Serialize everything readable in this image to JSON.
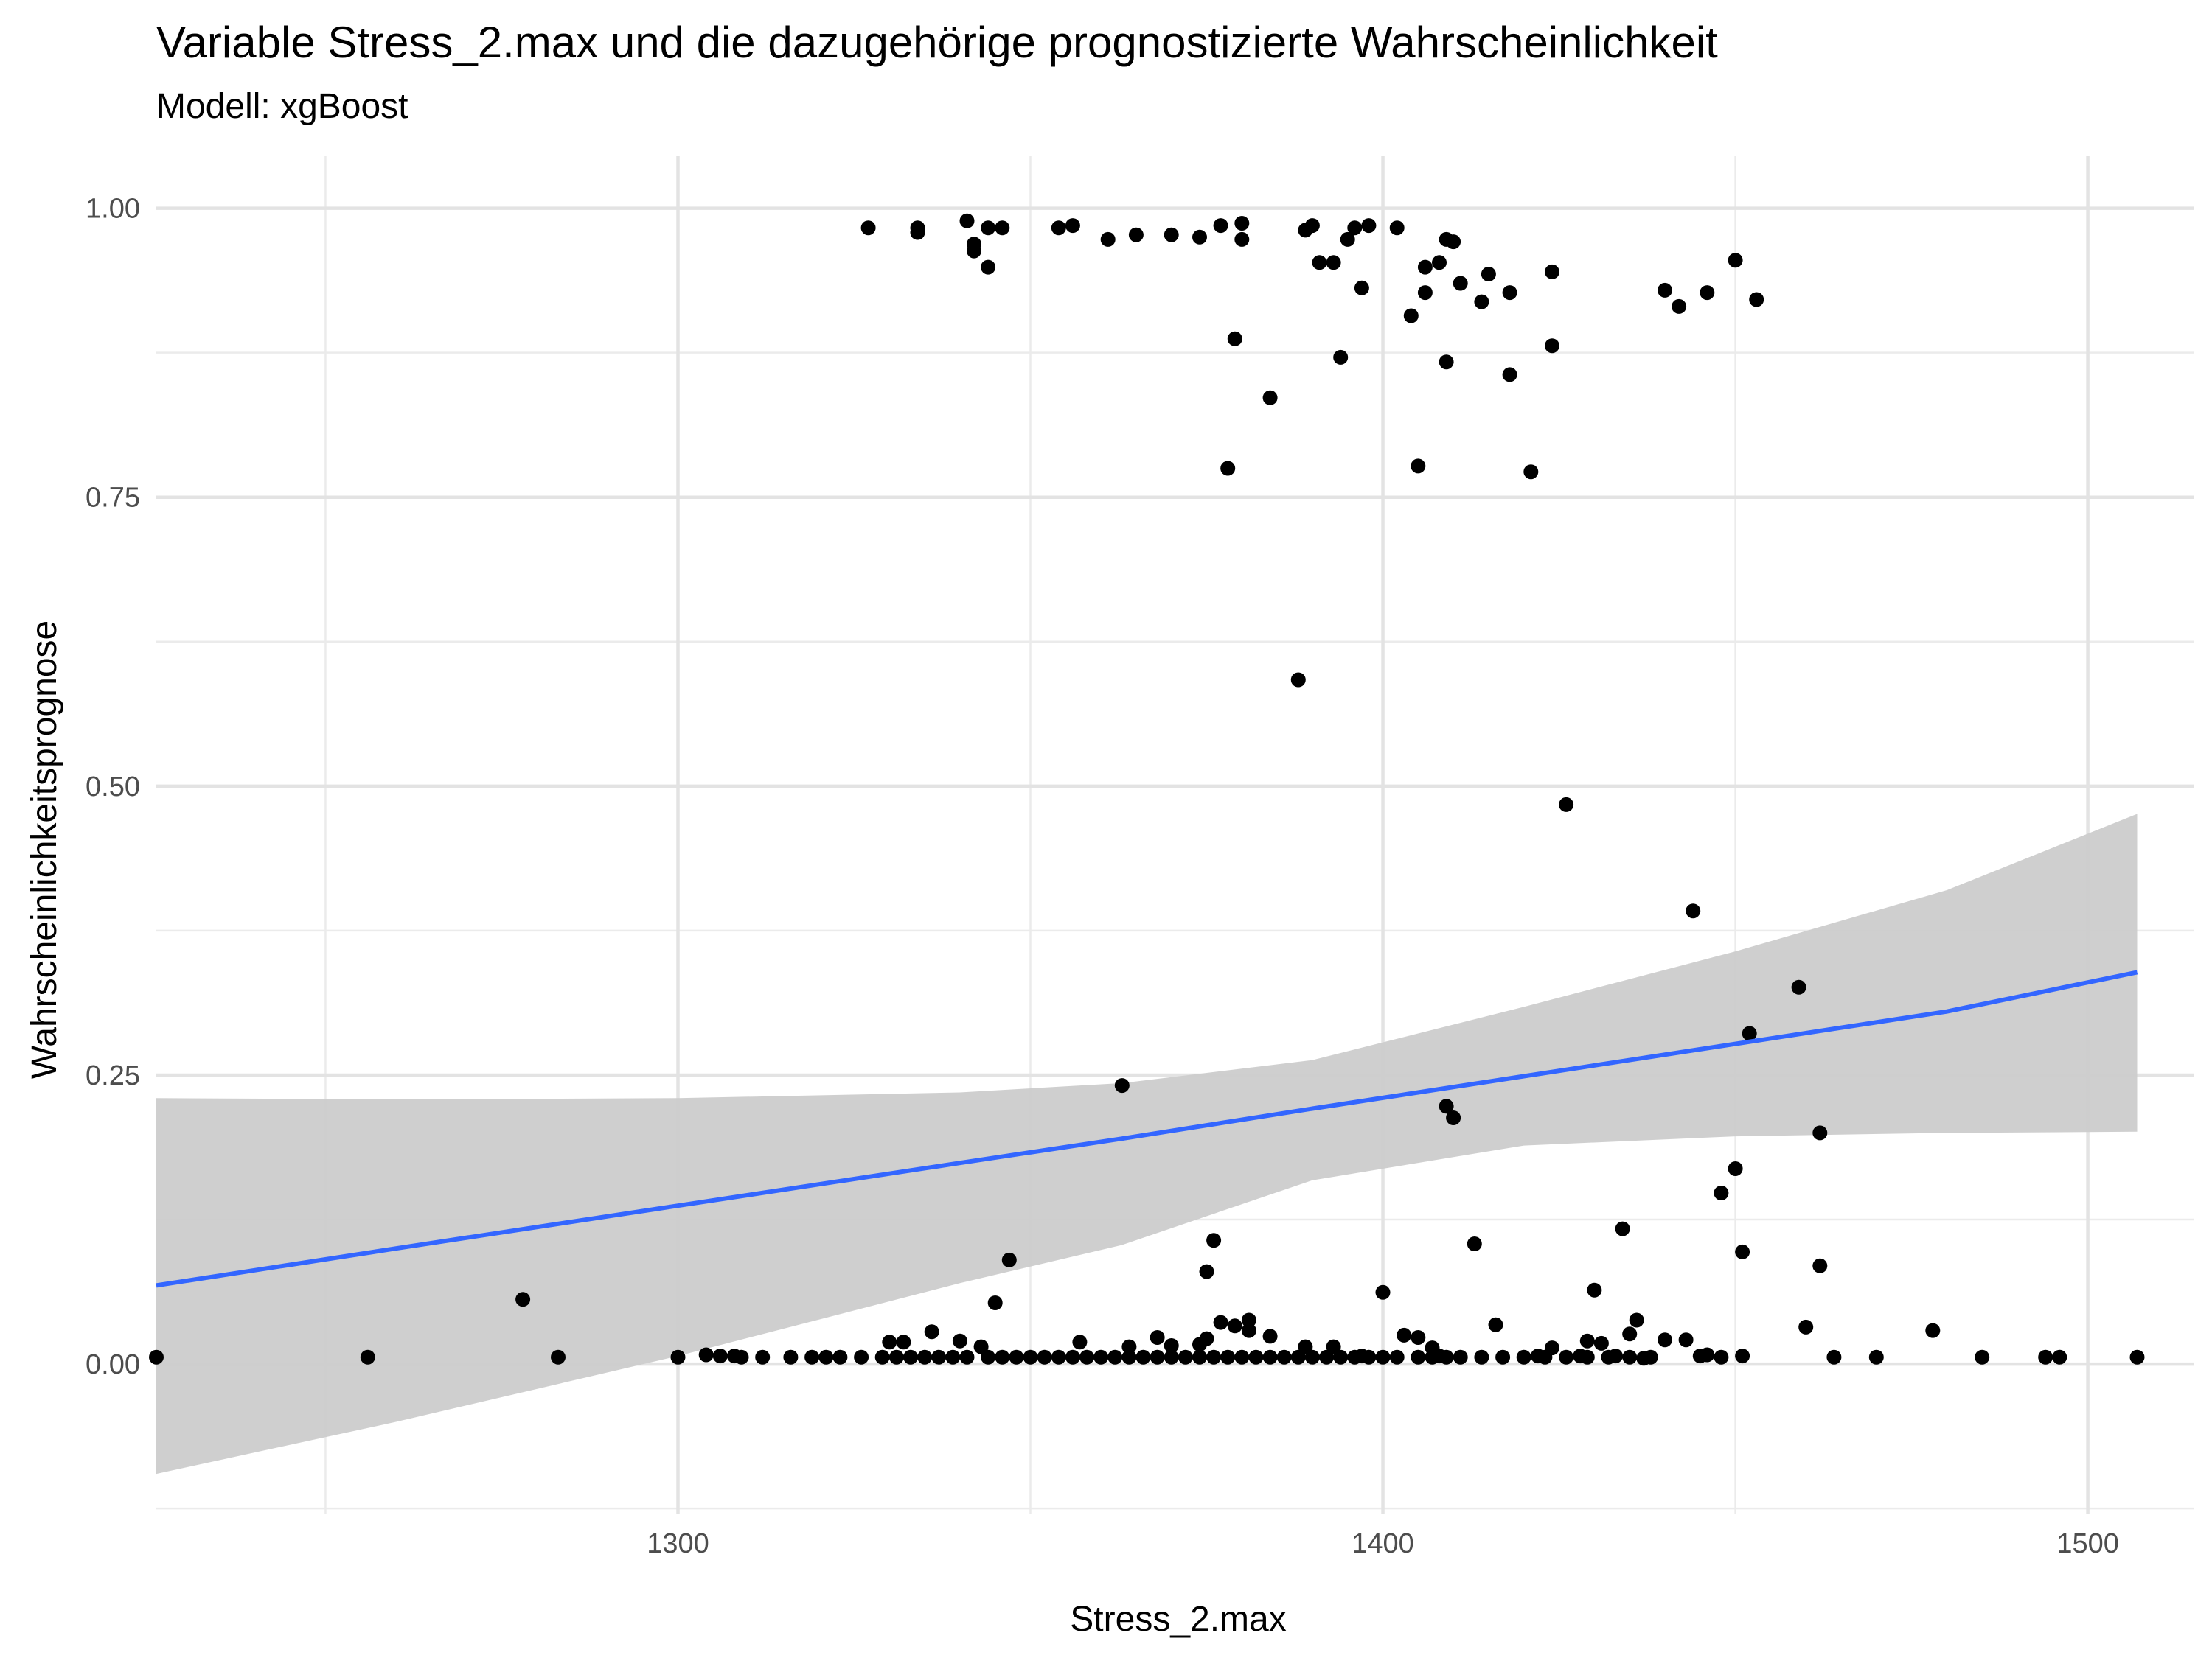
{
  "chart_data": {
    "type": "scatter",
    "title": "Variable Stress_2.max und die dazugehörige prognostizierte Wahrscheinlichkeit",
    "subtitle": "Modell: xgBoost",
    "xlabel": "Stress_2.max",
    "ylabel": "Wahrscheinlichkeitsprognose",
    "xlim": [
      1226,
      1515
    ],
    "ylim": [
      -0.13,
      1.045
    ],
    "x_ticks": [
      1300,
      1400,
      1500
    ],
    "x_tick_labels": [
      "1300",
      "1400",
      "1500"
    ],
    "y_ticks": [
      0,
      0.25,
      0.5,
      0.75,
      1
    ],
    "y_tick_labels": [
      "0.00",
      "0.25",
      "0.50",
      "0.75",
      "1.00"
    ],
    "grid": true,
    "points": [
      [
        1327,
        0.983
      ],
      [
        1334,
        0.983
      ],
      [
        1334,
        0.979
      ],
      [
        1341,
        0.989
      ],
      [
        1342,
        0.969
      ],
      [
        1342,
        0.963
      ],
      [
        1344,
        0.949
      ],
      [
        1344,
        0.983
      ],
      [
        1346,
        0.983
      ],
      [
        1354,
        0.983
      ],
      [
        1356,
        0.985
      ],
      [
        1361,
        0.973
      ],
      [
        1365,
        0.977
      ],
      [
        1370,
        0.977
      ],
      [
        1374,
        0.975
      ],
      [
        1377,
        0.985
      ],
      [
        1380,
        0.973
      ],
      [
        1380,
        0.987
      ],
      [
        1379,
        0.887
      ],
      [
        1384,
        0.836
      ],
      [
        1378,
        0.775
      ],
      [
        1388,
        0.592
      ],
      [
        1389,
        0.981
      ],
      [
        1390,
        0.985
      ],
      [
        1391,
        0.953
      ],
      [
        1393,
        0.953
      ],
      [
        1394,
        0.871
      ],
      [
        1395,
        0.973
      ],
      [
        1396,
        0.983
      ],
      [
        1397,
        0.931
      ],
      [
        1398,
        0.985
      ],
      [
        1402,
        0.983
      ],
      [
        1404,
        0.907
      ],
      [
        1405,
        0.777
      ],
      [
        1406,
        0.949
      ],
      [
        1406,
        0.927
      ],
      [
        1408,
        0.953
      ],
      [
        1409,
        0.973
      ],
      [
        1409,
        0.867
      ],
      [
        1410,
        0.971
      ],
      [
        1411,
        0.935
      ],
      [
        1414,
        0.919
      ],
      [
        1415,
        0.943
      ],
      [
        1418,
        0.927
      ],
      [
        1418,
        0.856
      ],
      [
        1421,
        0.772
      ],
      [
        1424,
        0.945
      ],
      [
        1424,
        0.881
      ],
      [
        1426,
        0.484
      ],
      [
        1440,
        0.929
      ],
      [
        1442,
        0.915
      ],
      [
        1444,
        0.392
      ],
      [
        1446,
        0.927
      ],
      [
        1450,
        0.955
      ],
      [
        1453,
        0.921
      ],
      [
        1459,
        0.326
      ],
      [
        1452,
        0.286
      ],
      [
        1462,
        0.2
      ],
      [
        1450,
        0.169
      ],
      [
        1448,
        0.148
      ],
      [
        1451,
        0.097
      ],
      [
        1462,
        0.085
      ],
      [
        1460,
        0.032
      ],
      [
        1434,
        0.117
      ],
      [
        1430,
        0.064
      ],
      [
        1436,
        0.038
      ],
      [
        1440,
        0.021
      ],
      [
        1443,
        0.021
      ],
      [
        1445,
        0.007
      ],
      [
        1437,
        0.005
      ],
      [
        1433,
        0.007
      ],
      [
        1435,
        0.026
      ],
      [
        1429,
        0.02
      ],
      [
        1428,
        0.007
      ],
      [
        1431,
        0.018
      ],
      [
        1422,
        0.007
      ],
      [
        1424,
        0.014
      ],
      [
        1416,
        0.034
      ],
      [
        1413,
        0.104
      ],
      [
        1409,
        0.223
      ],
      [
        1410,
        0.213
      ],
      [
        1408,
        0.007
      ],
      [
        1407,
        0.014
      ],
      [
        1405,
        0.023
      ],
      [
        1403,
        0.025
      ],
      [
        1400,
        0.062
      ],
      [
        1397,
        0.007
      ],
      [
        1393,
        0.015
      ],
      [
        1389,
        0.015
      ],
      [
        1384,
        0.024
      ],
      [
        1381,
        0.038
      ],
      [
        1379,
        0.033
      ],
      [
        1381,
        0.029
      ],
      [
        1377,
        0.036
      ],
      [
        1376,
        0.107
      ],
      [
        1375,
        0.08
      ],
      [
        1375,
        0.022
      ],
      [
        1374,
        0.017
      ],
      [
        1370,
        0.016
      ],
      [
        1368,
        0.023
      ],
      [
        1364,
        0.015
      ],
      [
        1363,
        0.241
      ],
      [
        1357,
        0.019
      ],
      [
        1347,
        0.09
      ],
      [
        1345,
        0.053
      ],
      [
        1343,
        0.015
      ],
      [
        1340,
        0.02
      ],
      [
        1336,
        0.028
      ],
      [
        1330,
        0.019
      ],
      [
        1332,
        0.019
      ],
      [
        1278,
        0.056
      ],
      [
        1283,
        0.006
      ],
      [
        1256,
        0.006
      ],
      [
        1226,
        0.006
      ],
      [
        1300,
        0.006
      ],
      [
        1304,
        0.008
      ],
      [
        1306,
        0.007
      ],
      [
        1308,
        0.007
      ],
      [
        1309,
        0.006
      ],
      [
        1312,
        0.006
      ],
      [
        1316,
        0.006
      ],
      [
        1319,
        0.006
      ],
      [
        1321,
        0.006
      ],
      [
        1323,
        0.006
      ],
      [
        1326,
        0.006
      ],
      [
        1329,
        0.006
      ],
      [
        1331,
        0.006
      ],
      [
        1333,
        0.006
      ],
      [
        1335,
        0.006
      ],
      [
        1337,
        0.006
      ],
      [
        1339,
        0.006
      ],
      [
        1341,
        0.006
      ],
      [
        1344,
        0.006
      ],
      [
        1346,
        0.006
      ],
      [
        1348,
        0.006
      ],
      [
        1350,
        0.006
      ],
      [
        1352,
        0.006
      ],
      [
        1354,
        0.006
      ],
      [
        1356,
        0.006
      ],
      [
        1358,
        0.006
      ],
      [
        1360,
        0.006
      ],
      [
        1362,
        0.006
      ],
      [
        1364,
        0.006
      ],
      [
        1366,
        0.006
      ],
      [
        1368,
        0.006
      ],
      [
        1370,
        0.006
      ],
      [
        1372,
        0.006
      ],
      [
        1374,
        0.006
      ],
      [
        1376,
        0.006
      ],
      [
        1378,
        0.006
      ],
      [
        1380,
        0.006
      ],
      [
        1382,
        0.006
      ],
      [
        1384,
        0.006
      ],
      [
        1386,
        0.006
      ],
      [
        1388,
        0.006
      ],
      [
        1390,
        0.006
      ],
      [
        1392,
        0.006
      ],
      [
        1394,
        0.006
      ],
      [
        1396,
        0.006
      ],
      [
        1398,
        0.006
      ],
      [
        1400,
        0.006
      ],
      [
        1402,
        0.006
      ],
      [
        1405,
        0.006
      ],
      [
        1407,
        0.006
      ],
      [
        1409,
        0.006
      ],
      [
        1411,
        0.006
      ],
      [
        1414,
        0.006
      ],
      [
        1417,
        0.006
      ],
      [
        1420,
        0.006
      ],
      [
        1423,
        0.006
      ],
      [
        1426,
        0.006
      ],
      [
        1429,
        0.006
      ],
      [
        1432,
        0.006
      ],
      [
        1435,
        0.006
      ],
      [
        1438,
        0.006
      ],
      [
        1446,
        0.008
      ],
      [
        1448,
        0.006
      ],
      [
        1451,
        0.007
      ],
      [
        1464,
        0.006
      ],
      [
        1470,
        0.006
      ],
      [
        1478,
        0.029
      ],
      [
        1485,
        0.006
      ],
      [
        1494,
        0.006
      ],
      [
        1496,
        0.006
      ],
      [
        1507,
        0.006
      ]
    ],
    "smooth": {
      "method": "linear fit",
      "line_color": "#3366ff",
      "band_color": "#cccccc",
      "x": [
        1226,
        1260,
        1300,
        1340,
        1363,
        1390,
        1420,
        1450,
        1480,
        1507
      ],
      "fit": [
        0.068,
        0.1,
        0.137,
        0.174,
        0.195,
        0.221,
        0.249,
        0.277,
        0.305,
        0.339
      ],
      "lower": [
        -0.095,
        -0.05,
        0.007,
        0.07,
        0.103,
        0.159,
        0.189,
        0.197,
        0.2,
        0.201
      ],
      "upper": [
        0.23,
        0.229,
        0.23,
        0.235,
        0.243,
        0.263,
        0.309,
        0.357,
        0.41,
        0.476
      ]
    },
    "point_color": "#000000"
  }
}
